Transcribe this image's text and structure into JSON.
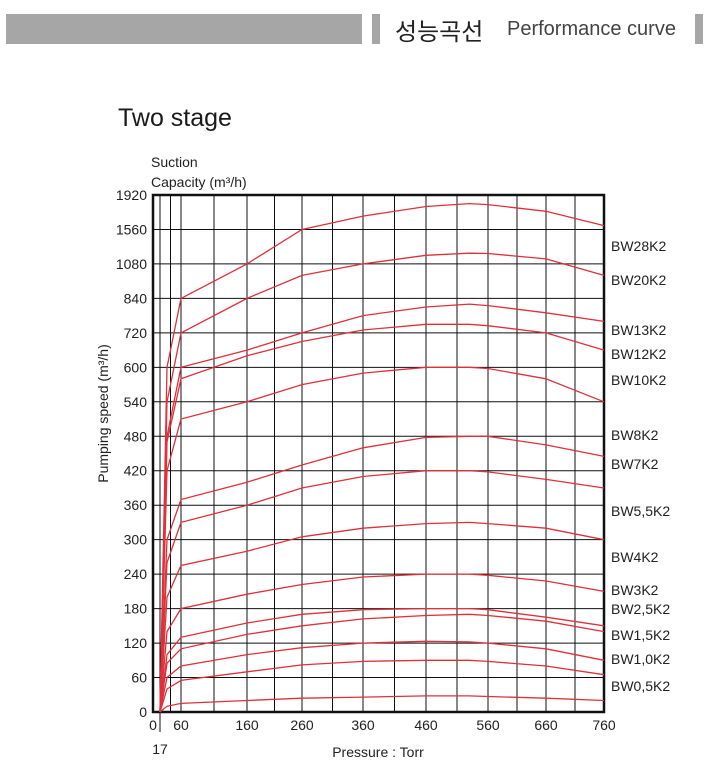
{
  "header": {
    "title_korean": "성능곡선",
    "title_english": "Performance curve"
  },
  "chart_data": {
    "type": "line",
    "title": "Two stage",
    "top_axis_label": [
      "Suction",
      "Capacity (m³/h)"
    ],
    "ylabel": "Pumping speed (m³/h)",
    "xlabel": "Pressure : Torr",
    "x_ticks": [
      "0",
      "60",
      "160",
      "260",
      "360",
      "460",
      "560",
      "660",
      "760"
    ],
    "x_extra_tick": "17",
    "y_ticks": [
      "0",
      "60",
      "120",
      "180",
      "240",
      "300",
      "360",
      "420",
      "480",
      "540",
      "600",
      "720",
      "840",
      "1080",
      "1560",
      "1920"
    ],
    "grid": true,
    "line_color": "#e0303a",
    "series": [
      {
        "name": "BW28K2",
        "x": [
          0,
          20,
          60,
          160,
          260,
          360,
          460,
          530,
          560,
          660,
          760
        ],
        "y": [
          0,
          600,
          840,
          1080,
          1560,
          1700,
          1800,
          1830,
          1820,
          1750,
          1600
        ]
      },
      {
        "name": "BW20K2",
        "x": [
          0,
          20,
          60,
          160,
          260,
          360,
          460,
          530,
          560,
          660,
          760
        ],
        "y": [
          0,
          540,
          720,
          840,
          1000,
          1080,
          1200,
          1230,
          1225,
          1150,
          1000
        ]
      },
      {
        "name": "BW13K2",
        "x": [
          0,
          20,
          60,
          160,
          260,
          360,
          460,
          530,
          560,
          660,
          760
        ],
        "y": [
          0,
          480,
          600,
          660,
          720,
          780,
          810,
          820,
          815,
          790,
          760
        ]
      },
      {
        "name": "BW12K2",
        "x": [
          0,
          20,
          60,
          160,
          260,
          360,
          460,
          530,
          560,
          660,
          760
        ],
        "y": [
          0,
          470,
          580,
          640,
          690,
          730,
          750,
          750,
          745,
          720,
          660
        ]
      },
      {
        "name": "BW10K2",
        "x": [
          0,
          20,
          60,
          160,
          260,
          360,
          460,
          530,
          560,
          660,
          760
        ],
        "y": [
          0,
          420,
          510,
          540,
          570,
          590,
          600,
          600,
          598,
          580,
          540
        ]
      },
      {
        "name": "BW8K2",
        "x": [
          0,
          20,
          60,
          160,
          260,
          360,
          460,
          530,
          560,
          660,
          760
        ],
        "y": [
          0,
          300,
          370,
          400,
          430,
          460,
          478,
          480,
          480,
          465,
          445
        ]
      },
      {
        "name": "BW7K2",
        "x": [
          0,
          20,
          60,
          160,
          260,
          360,
          460,
          530,
          560,
          660,
          760
        ],
        "y": [
          0,
          260,
          330,
          360,
          390,
          410,
          420,
          420,
          418,
          405,
          390
        ]
      },
      {
        "name": "BW5,5K2",
        "x": [
          0,
          20,
          60,
          160,
          260,
          360,
          460,
          530,
          560,
          660,
          760
        ],
        "y": [
          0,
          200,
          255,
          280,
          305,
          320,
          328,
          330,
          328,
          320,
          300
        ]
      },
      {
        "name": "BW4K2",
        "x": [
          0,
          20,
          60,
          160,
          260,
          360,
          460,
          530,
          560,
          660,
          760
        ],
        "y": [
          0,
          140,
          180,
          205,
          222,
          235,
          240,
          240,
          238,
          228,
          210
        ]
      },
      {
        "name": "BW3K2",
        "x": [
          0,
          20,
          60,
          160,
          260,
          360,
          460,
          530,
          560,
          660,
          760
        ],
        "y": [
          0,
          100,
          130,
          155,
          170,
          178,
          180,
          180,
          178,
          165,
          150
        ]
      },
      {
        "name": "BW2,5K2",
        "x": [
          0,
          20,
          60,
          160,
          260,
          360,
          460,
          530,
          560,
          660,
          760
        ],
        "y": [
          0,
          85,
          110,
          135,
          150,
          162,
          168,
          170,
          168,
          158,
          140
        ]
      },
      {
        "name": "BW1,5K2",
        "x": [
          0,
          20,
          60,
          160,
          260,
          360,
          460,
          530,
          560,
          660,
          760
        ],
        "y": [
          0,
          60,
          80,
          100,
          112,
          120,
          123,
          122,
          120,
          110,
          90
        ]
      },
      {
        "name": "BW1,0K2",
        "x": [
          0,
          20,
          60,
          160,
          260,
          360,
          460,
          530,
          560,
          660,
          760
        ],
        "y": [
          0,
          40,
          55,
          70,
          82,
          88,
          90,
          90,
          88,
          80,
          65
        ]
      },
      {
        "name": "BW0,5K2",
        "x": [
          0,
          20,
          60,
          160,
          260,
          360,
          460,
          530,
          560,
          660,
          760
        ],
        "y": [
          0,
          10,
          15,
          20,
          24,
          26,
          28,
          28,
          27,
          24,
          20
        ]
      }
    ]
  }
}
